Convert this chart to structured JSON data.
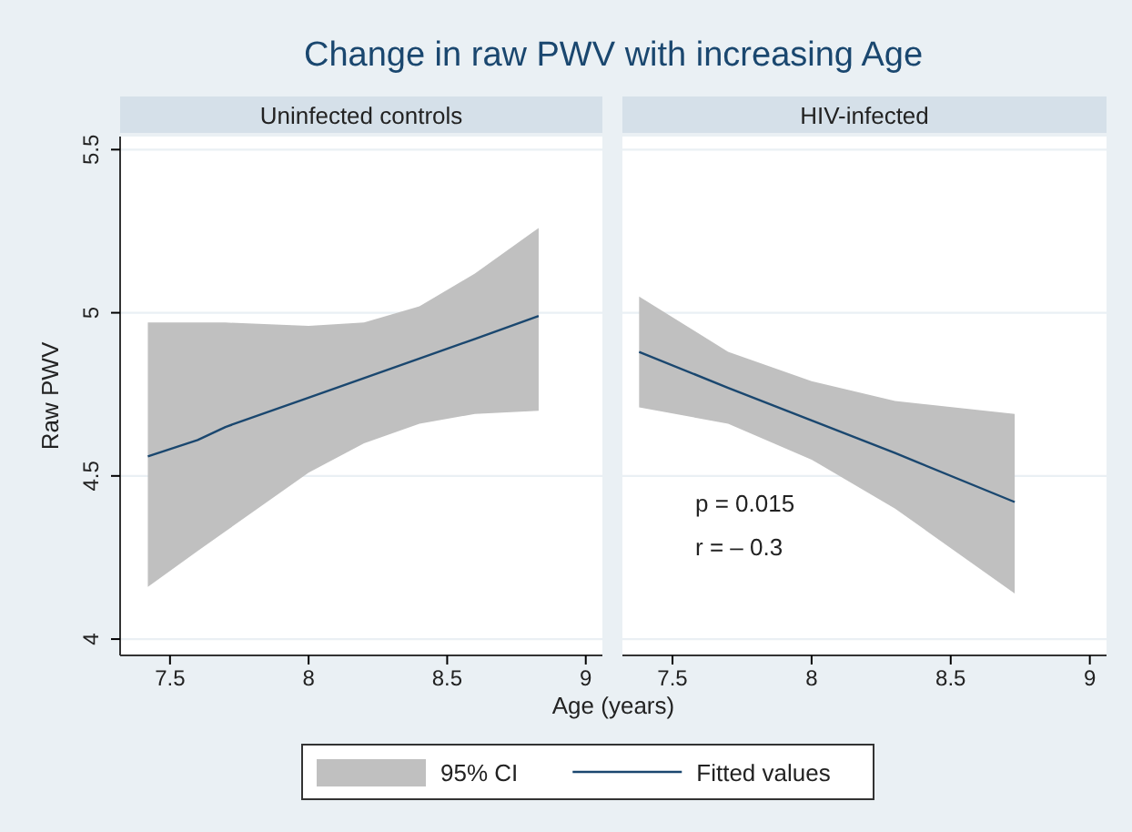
{
  "chart_data": [
    {
      "type": "line",
      "title": "Change in raw PWV with increasing Age",
      "subtitle": "Uninfected controls",
      "xlabel": "Age (years)",
      "ylabel": "Raw PWV",
      "xlim": [
        7.32,
        9.06
      ],
      "xticks": [
        7.5,
        8,
        8.5,
        9
      ],
      "ylim": [
        3.95,
        5.54
      ],
      "yticks": [
        4,
        4.5,
        5,
        5.5
      ],
      "grid": "y",
      "legend": "bottom",
      "series": [
        {
          "name": "95% CI",
          "type": "area",
          "color": "#c0c0c0"
        },
        {
          "name": "Fitted values",
          "type": "line",
          "color": "#1a476f",
          "x": [
            7.42,
            7.6,
            7.7,
            8.0,
            8.2,
            8.4,
            8.6,
            8.83
          ],
          "values": [
            4.56,
            4.61,
            4.65,
            4.74,
            4.8,
            4.86,
            4.92,
            4.99
          ],
          "lower": [
            4.16,
            4.27,
            4.33,
            4.51,
            4.6,
            4.66,
            4.69,
            4.7
          ],
          "upper": [
            4.97,
            4.97,
            4.97,
            4.96,
            4.97,
            5.02,
            5.12,
            5.26
          ]
        }
      ]
    },
    {
      "type": "line",
      "subtitle": "HIV-infected",
      "xlim": [
        7.32,
        9.06
      ],
      "xticks": [
        7.5,
        8,
        8.5,
        9
      ],
      "ylim": [
        3.95,
        5.54
      ],
      "yticks": [
        4,
        4.5,
        5,
        5.5
      ],
      "grid": "y",
      "tick_labels": "x",
      "annotations": [
        "p = 0.015",
        "r = – 0.3"
      ],
      "series": [
        {
          "type": "area",
          "color": "#c0c0c0"
        },
        {
          "type": "line",
          "color": "#1a476f",
          "x": [
            7.38,
            7.7,
            8.0,
            8.3,
            8.73
          ],
          "values": [
            4.88,
            4.77,
            4.67,
            4.57,
            4.42
          ],
          "lower": [
            4.71,
            4.66,
            4.55,
            4.4,
            4.14
          ],
          "upper": [
            5.05,
            4.88,
            4.79,
            4.73,
            4.69
          ]
        }
      ]
    }
  ]
}
